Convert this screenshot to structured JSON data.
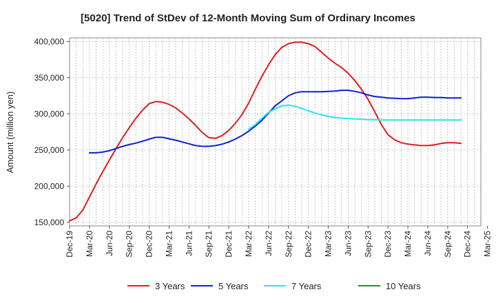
{
  "chart_data": {
    "type": "line",
    "title": "[5020]  Trend of StDev of 12-Month Moving Sum of Ordinary Incomes",
    "xlabel": "",
    "ylabel": "Amount (million yen)",
    "ylim": [
      145000,
      405000
    ],
    "yticks": [
      150000,
      200000,
      250000,
      300000,
      350000,
      400000
    ],
    "ytick_labels": [
      "150,000",
      "200,000",
      "250,000",
      "300,000",
      "350,000",
      "400,000"
    ],
    "x_tick_labels": [
      "Dec-19",
      "Mar-20",
      "Jun-20",
      "Sep-20",
      "Dec-20",
      "Mar-21",
      "Jun-21",
      "Sep-21",
      "Dec-21",
      "Mar-22",
      "Jun-22",
      "Sep-22",
      "Dec-22",
      "Mar-23",
      "Jun-23",
      "Sep-23",
      "Dec-23",
      "Mar-24",
      "Jun-24",
      "Sep-24",
      "Dec-24",
      "Mar-25"
    ],
    "x_month_start": "Dec-19",
    "x_month_count": 63,
    "grid": true,
    "series": [
      {
        "name": "3 Years",
        "color": "#e31a1c",
        "start_month_index": 0,
        "values": [
          152000,
          156000,
          167000,
          185000,
          203000,
          220000,
          236000,
          252000,
          267000,
          281000,
          294000,
          305000,
          314000,
          317000,
          316000,
          313000,
          308000,
          301000,
          293000,
          284000,
          274000,
          267000,
          266000,
          270000,
          277000,
          287000,
          299000,
          315000,
          334000,
          352000,
          368000,
          382000,
          392000,
          397000,
          399000,
          399000,
          397000,
          393000,
          385000,
          377000,
          370000,
          364000,
          356000,
          346000,
          334000,
          320000,
          303000,
          285000,
          271000,
          264000,
          260000,
          258000,
          257000,
          256000,
          256000,
          257000,
          259000,
          260000,
          260000,
          259000
        ]
      },
      {
        "name": "5 Years",
        "color": "#0a1fd6",
        "start_month_index": 3,
        "values": [
          246000,
          246000,
          247000,
          249000,
          252000,
          255000,
          257500,
          259500,
          262000,
          265000,
          267500,
          267500,
          265500,
          263500,
          261000,
          258500,
          256000,
          255000,
          255000,
          256000,
          258000,
          261000,
          265000,
          270000,
          276000,
          283000,
          291000,
          301000,
          311000,
          318000,
          325000,
          329000,
          330500,
          330500,
          330500,
          330500,
          331000,
          331500,
          332500,
          332500,
          331000,
          329000,
          326000,
          324000,
          323000,
          322000,
          321500,
          321000,
          321000,
          322000,
          323000,
          323000,
          322500,
          322500,
          322000,
          322000,
          322000
        ]
      },
      {
        "name": "7 Years",
        "color": "#22e6ee",
        "start_month_index": 27,
        "values": [
          279000,
          285000,
          294000,
          302000,
          307000,
          311000,
          312000,
          310500,
          307500,
          304000,
          301000,
          298500,
          296500,
          295000,
          294000,
          293500,
          293000,
          292500,
          292000,
          292000,
          291500,
          291500,
          291500,
          291500,
          291500,
          291500,
          291500,
          291500,
          291500,
          291500,
          291500,
          291500,
          291500
        ]
      },
      {
        "name": "10 Years",
        "color": "#2a8a2a",
        "start_month_index": 0,
        "values": []
      }
    ]
  }
}
